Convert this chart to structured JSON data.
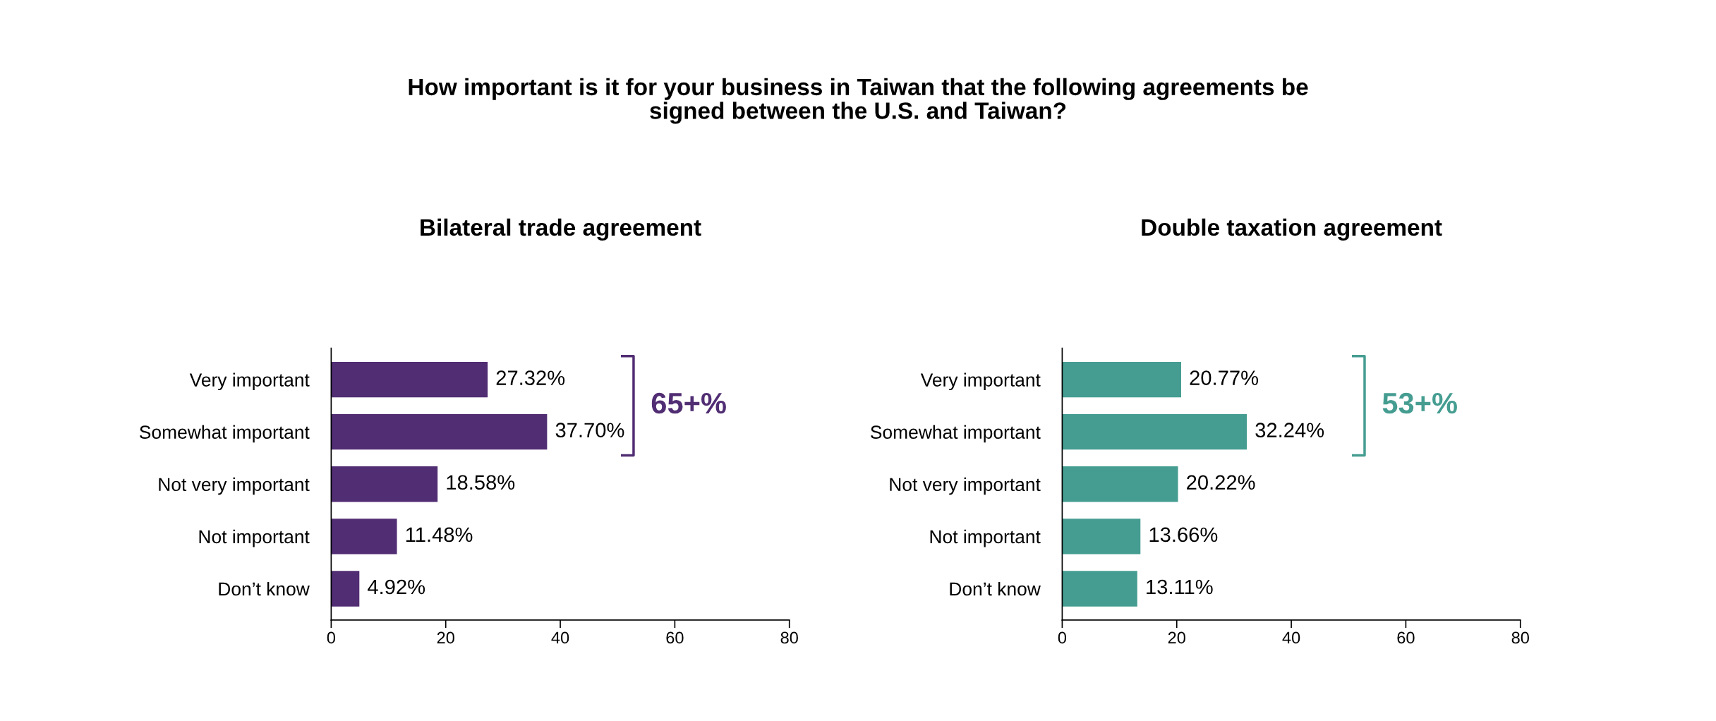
{
  "chart_data": [
    {
      "type": "bar",
      "orientation": "horizontal",
      "title": "Bilateral trade agreement",
      "categories": [
        "Very important",
        "Somewhat important",
        "Not very important",
        "Not important",
        "Don’t know"
      ],
      "series": [
        {
          "color": "#512d73",
          "values": [
            27.32,
            37.7,
            18.58,
            11.48,
            4.92
          ],
          "value_labels": [
            "27.32%",
            "37.70%",
            "18.58%",
            "11.48%",
            "4.92%"
          ]
        }
      ],
      "xlim": [
        0,
        80
      ],
      "xticks": [
        0,
        20,
        40,
        60,
        80
      ],
      "grid": false,
      "legend": false,
      "annotations": [
        "How important is it for your business in Taiwan that the following agreements be\nsigned between the U.S. and Taiwan?",
        "65+%"
      ]
    },
    {
      "type": "bar",
      "orientation": "horizontal",
      "title": "Double taxation agreement",
      "categories": [
        "Very important",
        "Somewhat important",
        "Not very important",
        "Not important",
        "Don’t know"
      ],
      "series": [
        {
          "color": "#459d91",
          "values": [
            20.77,
            32.24,
            20.22,
            13.66,
            13.11
          ],
          "value_labels": [
            "20.77%",
            "32.24%",
            "20.22%",
            "13.66%",
            "13.11%"
          ]
        }
      ],
      "xlim": [
        0,
        80
      ],
      "xticks": [
        0,
        20,
        40,
        60,
        80
      ],
      "grid": false,
      "legend": false,
      "annotations": [
        "53+%"
      ]
    }
  ]
}
